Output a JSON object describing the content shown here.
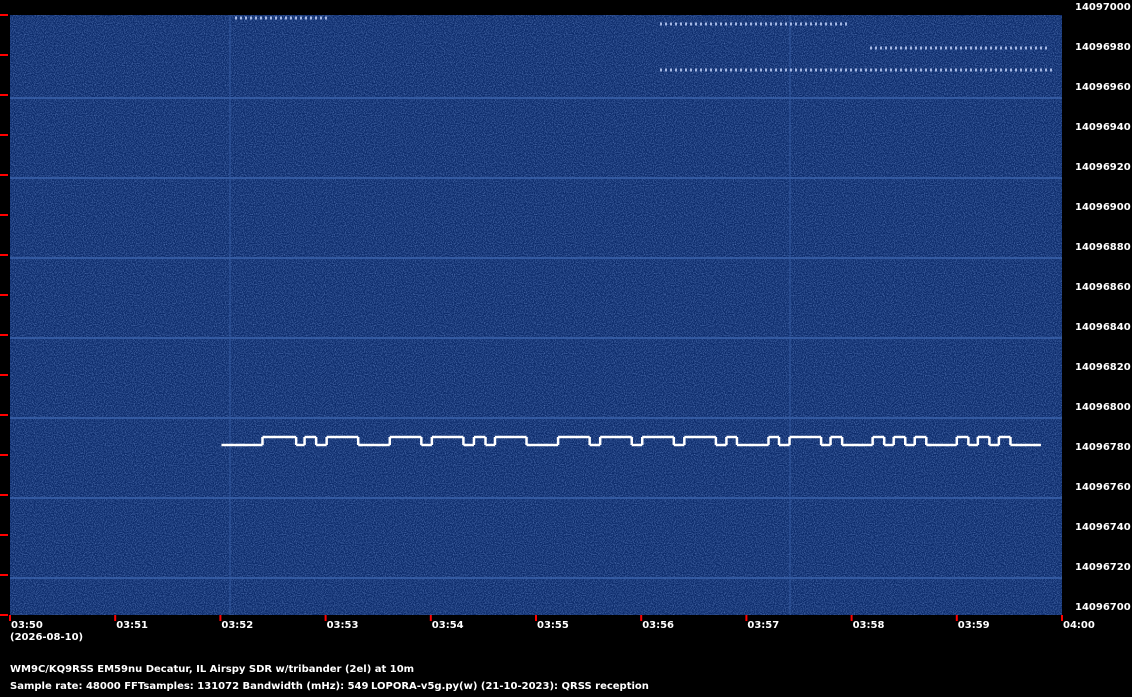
{
  "chart_data": {
    "type": "spectrogram",
    "title": "WM9C/KQ9RSS EM59nu Decatur, IL  Airspy SDR w/tribander (2el) at 10m",
    "info": "Sample rate: 48000    FFTsamples: 131072    Bandwidth (mHz): 549",
    "software": "LOPORA-v5g.py(w) (21-10-2023): QRSS reception",
    "date": "(2026-08-10)",
    "xlim": [
      230,
      240
    ],
    "xticks": [
      {
        "value": 230,
        "label": "03:50"
      },
      {
        "value": 231,
        "label": "03:51"
      },
      {
        "value": 232,
        "label": "03:52"
      },
      {
        "value": 233,
        "label": "03:53"
      },
      {
        "value": 234,
        "label": "03:54"
      },
      {
        "value": 235,
        "label": "03:55"
      },
      {
        "value": 236,
        "label": "03:56"
      },
      {
        "value": 237,
        "label": "03:57"
      },
      {
        "value": 238,
        "label": "03:58"
      },
      {
        "value": 239,
        "label": "03:59"
      },
      {
        "value": 240,
        "label": "04:00"
      }
    ],
    "ylim": [
      14096700,
      14097000
    ],
    "yticks": [
      14096700,
      14096720,
      14096740,
      14096760,
      14096780,
      14096800,
      14096820,
      14096840,
      14096860,
      14096880,
      14096900,
      14096920,
      14096940,
      14096960,
      14096980,
      14097000
    ],
    "series": [
      {
        "color": "#ffffff",
        "x": [
          232.01,
          232.4,
          232.72,
          232.8,
          232.91,
          233.01,
          233.31,
          233.61,
          233.91,
          234.01,
          234.31,
          234.41,
          234.52,
          234.61,
          234.91,
          235.21,
          235.51,
          235.61,
          235.91,
          236.01,
          236.31,
          236.41,
          236.71,
          236.81,
          236.91,
          237.21,
          237.31,
          237.41,
          237.71,
          237.8,
          237.91,
          238.2,
          238.31,
          238.4,
          238.51,
          238.6,
          238.71,
          239.0,
          239.11,
          239.2,
          239.31,
          239.4,
          239.51,
          239.8
        ],
        "values": [
          14096785,
          14096789,
          14096785,
          14096789,
          14096785,
          14096789,
          14096785,
          14096789,
          14096785,
          14096789,
          14096785,
          14096789,
          14096785,
          14096789,
          14096785,
          14096789,
          14096785,
          14096789,
          14096785,
          14096789,
          14096785,
          14096789,
          14096785,
          14096789,
          14096785,
          14096789,
          14096785,
          14096789,
          14096785,
          14096789,
          14096785,
          14096789,
          14096785,
          14096789,
          14096785,
          14096789,
          14096785,
          14096789,
          14096785,
          14096789,
          14096785,
          14096789,
          14096785,
          14096785
        ]
      }
    ],
    "tick_color": "#ff0000",
    "background": "#0b2a6a"
  }
}
